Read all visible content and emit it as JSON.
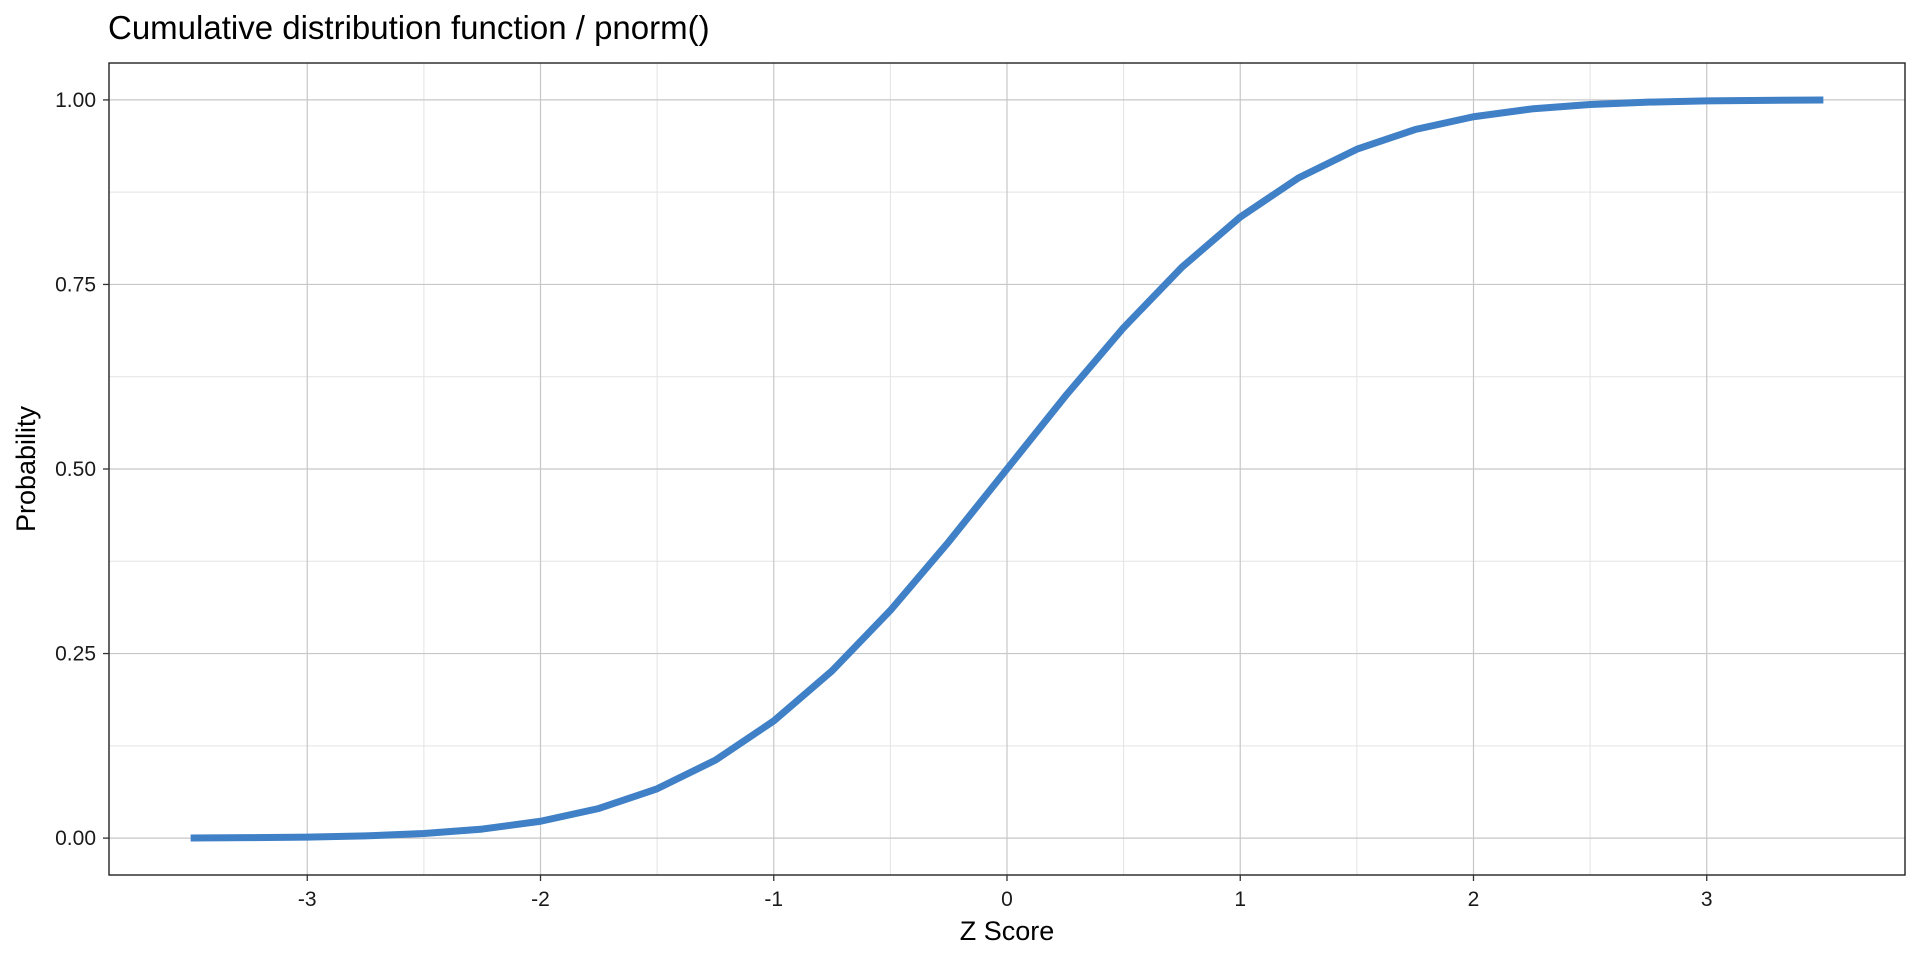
{
  "chart_data": {
    "type": "line",
    "title": "Cumulative distribution function / pnorm()",
    "xlabel": "Z Score",
    "ylabel": "Probability",
    "xlim": [
      -3.85,
      3.85
    ],
    "ylim": [
      -0.05,
      1.05
    ],
    "x_ticks": [
      -3,
      -2,
      -1,
      0,
      1,
      2,
      3
    ],
    "x_tick_labels": [
      "-3",
      "-2",
      "-1",
      "0",
      "1",
      "2",
      "3"
    ],
    "y_ticks": [
      0,
      0.25,
      0.5,
      0.75,
      1
    ],
    "y_tick_labels": [
      "0.00",
      "0.25",
      "0.50",
      "0.75",
      "1.00"
    ],
    "grid": true,
    "legend": "none",
    "series": [
      {
        "color": "#4080c6",
        "x": [
          -3.5,
          -3.25,
          -3.0,
          -2.75,
          -2.5,
          -2.25,
          -2.0,
          -1.75,
          -1.5,
          -1.25,
          -1.0,
          -0.75,
          -0.5,
          -0.25,
          0.0,
          0.25,
          0.5,
          0.75,
          1.0,
          1.25,
          1.5,
          1.75,
          2.0,
          2.25,
          2.5,
          2.75,
          3.0,
          3.25,
          3.5
        ],
        "y": [
          0.0002,
          0.0006,
          0.0013,
          0.003,
          0.0062,
          0.0122,
          0.0228,
          0.0401,
          0.0668,
          0.1056,
          0.1587,
          0.2266,
          0.3085,
          0.4013,
          0.5,
          0.5987,
          0.6915,
          0.7734,
          0.8413,
          0.8944,
          0.9332,
          0.9599,
          0.9772,
          0.9878,
          0.9938,
          0.997,
          0.9987,
          0.9994,
          0.9998
        ]
      }
    ]
  }
}
